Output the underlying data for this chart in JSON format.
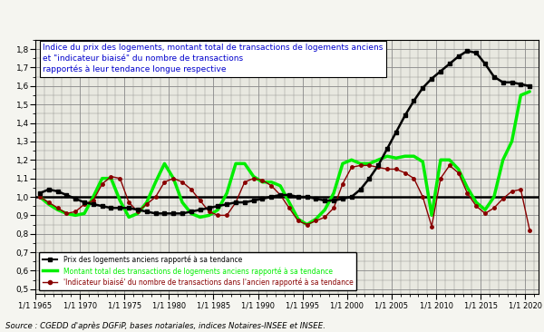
{
  "title_box": "Indice du prix des logements, montant total de transactions de logements anciens\net \"indicateur biaisé\" du nombre de transactions\nrapportés à leur tendance longue respective",
  "source": "Source : CGEDD d'après DGFiP, bases notariales, indices Notaires-INSEE et INSEE.",
  "ylabel_ticks": [
    0.5,
    0.6,
    0.7,
    0.8,
    0.9,
    1.0,
    1.1,
    1.2,
    1.3,
    1.4,
    1.5,
    1.6,
    1.7,
    1.8
  ],
  "ylim": [
    0.475,
    1.85
  ],
  "xlim_start": 1965.0,
  "xlim_end": 2021.5,
  "xtick_years": [
    1965,
    1970,
    1975,
    1980,
    1985,
    1990,
    1995,
    2000,
    2005,
    2010,
    2015,
    2020
  ],
  "legend_black": "Prix des logements anciens rapporté à sa tendance",
  "legend_green": "Montant total des transactions de logements anciens rapporté à sa tendance",
  "legend_red": "'Indicateur biaisé' du nombre de transactions dans l'ancien rapporté à sa tendance",
  "color_black": "#000000",
  "color_green": "#00ee00",
  "color_red": "#880000",
  "hline_y": 1.0,
  "price_index": {
    "years": [
      1965.5,
      1966.5,
      1967.5,
      1968.5,
      1969.5,
      1970.5,
      1971.5,
      1972.5,
      1973.5,
      1974.5,
      1975.5,
      1976.5,
      1977.5,
      1978.5,
      1979.5,
      1980.5,
      1981.5,
      1982.5,
      1983.5,
      1984.5,
      1985.5,
      1986.5,
      1987.5,
      1988.5,
      1989.5,
      1990.5,
      1991.5,
      1992.5,
      1993.5,
      1994.5,
      1995.5,
      1996.5,
      1997.5,
      1998.5,
      1999.5,
      2000.5,
      2001.5,
      2002.5,
      2003.5,
      2004.5,
      2005.5,
      2006.5,
      2007.5,
      2008.5,
      2009.5,
      2010.5,
      2011.5,
      2012.5,
      2013.5,
      2014.5,
      2015.5,
      2016.5,
      2017.5,
      2018.5,
      2019.5,
      2020.5
    ],
    "values": [
      1.02,
      1.04,
      1.03,
      1.01,
      0.99,
      0.97,
      0.96,
      0.95,
      0.94,
      0.94,
      0.94,
      0.93,
      0.92,
      0.91,
      0.91,
      0.91,
      0.91,
      0.92,
      0.93,
      0.94,
      0.95,
      0.96,
      0.97,
      0.97,
      0.98,
      0.99,
      1.0,
      1.01,
      1.01,
      1.0,
      1.0,
      0.99,
      0.98,
      0.98,
      0.99,
      1.0,
      1.04,
      1.1,
      1.17,
      1.26,
      1.35,
      1.44,
      1.52,
      1.59,
      1.64,
      1.68,
      1.72,
      1.76,
      1.79,
      1.78,
      1.72,
      1.65,
      1.62,
      1.62,
      1.61,
      1.6
    ]
  },
  "volume_index": {
    "years": [
      1965.5,
      1966.5,
      1967.5,
      1968.5,
      1969.5,
      1970.5,
      1971.5,
      1972.5,
      1973.5,
      1974.5,
      1975.5,
      1976.5,
      1977.5,
      1978.5,
      1979.5,
      1980.5,
      1981.5,
      1982.5,
      1983.5,
      1984.5,
      1985.5,
      1986.5,
      1987.5,
      1988.5,
      1989.5,
      1990.5,
      1991.5,
      1992.5,
      1993.5,
      1994.5,
      1995.5,
      1996.5,
      1997.5,
      1998.5,
      1999.5,
      2000.5,
      2001.5,
      2002.5,
      2003.5,
      2004.5,
      2005.5,
      2006.5,
      2007.5,
      2008.5,
      2009.5,
      2010.5,
      2011.5,
      2012.5,
      2013.5,
      2014.5,
      2015.5,
      2016.5,
      2017.5,
      2018.5,
      2019.5,
      2020.5
    ],
    "values": [
      1.0,
      0.96,
      0.93,
      0.91,
      0.9,
      0.91,
      1.0,
      1.1,
      1.1,
      0.98,
      0.89,
      0.91,
      0.97,
      1.08,
      1.18,
      1.1,
      0.97,
      0.91,
      0.89,
      0.9,
      0.93,
      1.02,
      1.18,
      1.18,
      1.11,
      1.08,
      1.08,
      1.06,
      0.97,
      0.88,
      0.85,
      0.88,
      0.93,
      1.02,
      1.18,
      1.2,
      1.18,
      1.18,
      1.2,
      1.22,
      1.21,
      1.22,
      1.22,
      1.19,
      0.9,
      1.2,
      1.2,
      1.15,
      1.05,
      0.97,
      0.93,
      1.0,
      1.2,
      1.3,
      1.55,
      1.57
    ]
  },
  "biased_index": {
    "years": [
      1965.5,
      1966.5,
      1967.5,
      1968.5,
      1969.5,
      1970.5,
      1971.5,
      1972.5,
      1973.5,
      1974.5,
      1975.5,
      1976.5,
      1977.5,
      1978.5,
      1979.5,
      1980.5,
      1981.5,
      1982.5,
      1983.5,
      1984.5,
      1985.5,
      1986.5,
      1987.5,
      1988.5,
      1989.5,
      1990.5,
      1991.5,
      1992.5,
      1993.5,
      1994.5,
      1995.5,
      1996.5,
      1997.5,
      1998.5,
      1999.5,
      2000.5,
      2001.5,
      2002.5,
      2003.5,
      2004.5,
      2005.5,
      2006.5,
      2007.5,
      2008.5,
      2009.5,
      2010.5,
      2011.5,
      2012.5,
      2013.5,
      2014.5,
      2015.5,
      2016.5,
      2017.5,
      2018.5,
      2019.5,
      2020.5
    ],
    "values": [
      1.0,
      0.97,
      0.94,
      0.91,
      0.92,
      0.96,
      0.98,
      1.07,
      1.11,
      1.1,
      0.97,
      0.92,
      0.96,
      1.0,
      1.08,
      1.1,
      1.08,
      1.04,
      0.98,
      0.92,
      0.9,
      0.9,
      0.97,
      1.08,
      1.1,
      1.09,
      1.06,
      1.01,
      0.94,
      0.87,
      0.85,
      0.87,
      0.89,
      0.94,
      1.07,
      1.16,
      1.17,
      1.17,
      1.16,
      1.15,
      1.15,
      1.13,
      1.1,
      1.0,
      0.84,
      1.1,
      1.17,
      1.13,
      1.02,
      0.95,
      0.91,
      0.94,
      0.99,
      1.03,
      1.04,
      0.82
    ]
  },
  "background_color": "#f5f5f0",
  "grid_color": "#888888",
  "plot_bg": "#e8e8e0"
}
